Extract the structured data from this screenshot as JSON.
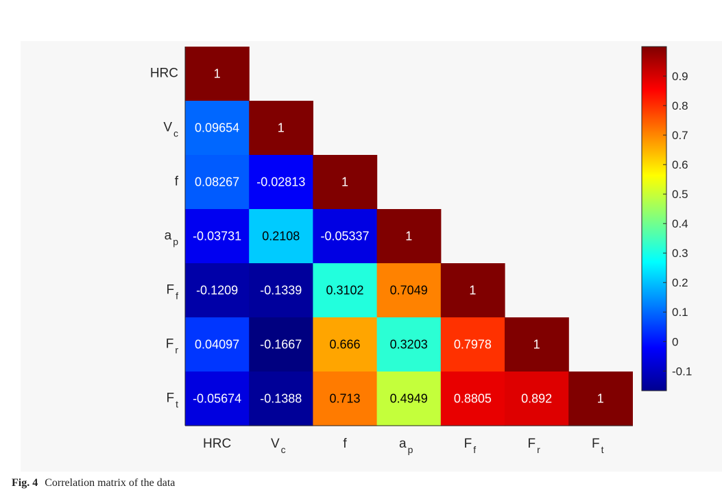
{
  "caption": {
    "label": "Fig. 4",
    "text": "Correlation matrix of the data"
  },
  "chart_data": {
    "type": "heatmap",
    "title": "",
    "variables": [
      {
        "base": "HRC",
        "sub": ""
      },
      {
        "base": "V",
        "sub": "c"
      },
      {
        "base": "f",
        "sub": ""
      },
      {
        "base": "a",
        "sub": "p"
      },
      {
        "base": "F",
        "sub": "f"
      },
      {
        "base": "F",
        "sub": "r"
      },
      {
        "base": "F",
        "sub": "t"
      }
    ],
    "matrix": [
      [
        "1"
      ],
      [
        "0.09654",
        "1"
      ],
      [
        "0.08267",
        "-0.02813",
        "1"
      ],
      [
        "-0.03731",
        "0.2108",
        "-0.05337",
        "1"
      ],
      [
        "-0.1209",
        "-0.1339",
        "0.3102",
        "0.7049",
        "1"
      ],
      [
        "0.04097",
        "-0.1667",
        "0.666",
        "0.3203",
        "0.7978",
        "1"
      ],
      [
        "-0.05674",
        "-0.1388",
        "0.713",
        "0.4949",
        "0.8805",
        "0.892",
        "1"
      ]
    ],
    "lower_triangle_only": true,
    "colormap": "jet",
    "color_range": [
      -0.1667,
      1
    ],
    "colorbar": {
      "ticks": [
        "-0.1",
        "0",
        "0.1",
        "0.2",
        "0.3",
        "0.4",
        "0.5",
        "0.6",
        "0.7",
        "0.8",
        "0.9"
      ],
      "location": "right"
    }
  }
}
